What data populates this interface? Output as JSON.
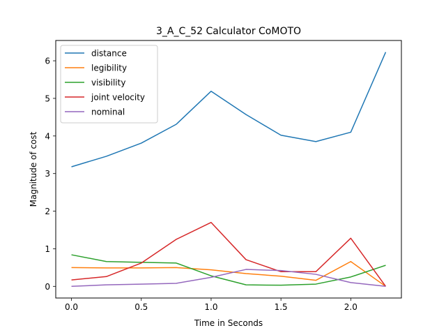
{
  "chart_data": {
    "type": "line",
    "title": "3_A_C_52 Calculator CoMOTO",
    "xlabel": "Time in Seconds",
    "ylabel": "Magnitude of cost",
    "x": [
      0.0,
      0.25,
      0.5,
      0.75,
      1.0,
      1.25,
      1.5,
      1.75,
      2.0,
      2.25
    ],
    "xlim": [
      -0.1125,
      2.3625
    ],
    "ylim": [
      -0.31,
      6.54
    ],
    "xticks": [
      0.0,
      0.5,
      1.0,
      1.5,
      2.0
    ],
    "xtick_labels": [
      "0.0",
      "0.5",
      "1.0",
      "1.5",
      "2.0"
    ],
    "yticks": [
      0,
      1,
      2,
      3,
      4,
      5,
      6
    ],
    "ytick_labels": [
      "0",
      "1",
      "2",
      "3",
      "4",
      "5",
      "6"
    ],
    "grid": false,
    "legend_position": "upper-left",
    "series": [
      {
        "name": "distance",
        "color": "#1f77b4",
        "values": [
          3.18,
          3.46,
          3.81,
          4.31,
          5.19,
          4.57,
          4.02,
          3.85,
          4.1,
          6.23
        ]
      },
      {
        "name": "legibility",
        "color": "#ff7f0e",
        "values": [
          0.5,
          0.49,
          0.49,
          0.5,
          0.44,
          0.34,
          0.27,
          0.16,
          0.66,
          0.0
        ]
      },
      {
        "name": "visibility",
        "color": "#2ca02c",
        "values": [
          0.84,
          0.66,
          0.64,
          0.62,
          0.28,
          0.04,
          0.03,
          0.06,
          0.25,
          0.56
        ]
      },
      {
        "name": "joint velocity",
        "color": "#d62728",
        "values": [
          0.17,
          0.26,
          0.62,
          1.25,
          1.7,
          0.71,
          0.39,
          0.39,
          1.28,
          0.0
        ]
      },
      {
        "name": "nominal",
        "color": "#9467bd",
        "values": [
          0.0,
          0.04,
          0.06,
          0.08,
          0.24,
          0.45,
          0.42,
          0.32,
          0.1,
          0.0
        ]
      }
    ]
  }
}
